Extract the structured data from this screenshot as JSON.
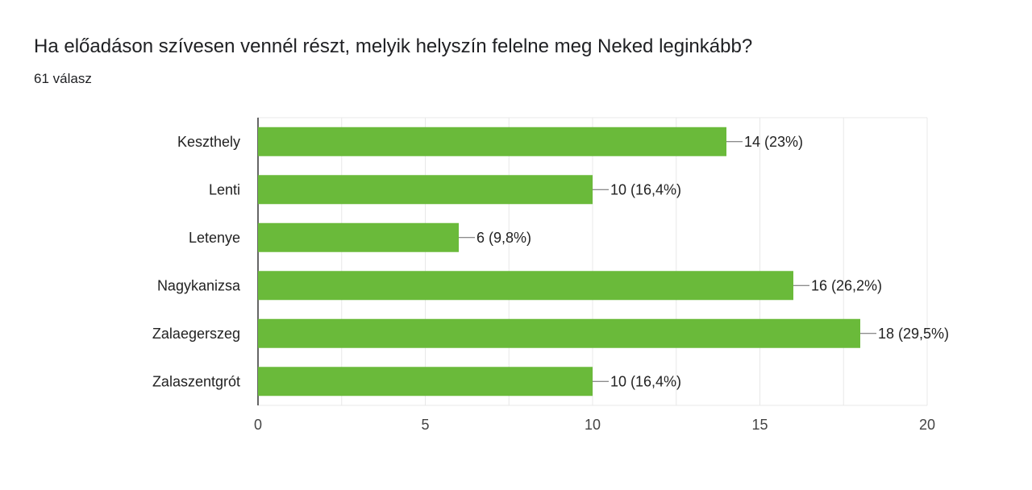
{
  "header": {
    "question": "Ha előadáson szívesen vennél részt, melyik helyszín felelne meg Neked leginkább?",
    "responses": "61 válasz"
  },
  "chart_data": {
    "type": "bar",
    "orientation": "horizontal",
    "categories": [
      "Keszthely",
      "Lenti",
      "Letenye",
      "Nagykanizsa",
      "Zalaegerszeg",
      "Zalaszentgrót"
    ],
    "values": [
      14,
      10,
      6,
      16,
      18,
      10
    ],
    "data_labels": [
      "14 (23%)",
      "10 (16,4%)",
      "6 (9,8%)",
      "16 (26,2%)",
      "18 (29,5%)",
      "10 (16,4%)"
    ],
    "xlim": [
      0,
      20
    ],
    "xticks": [
      "0",
      "5",
      "10",
      "15",
      "20"
    ],
    "grid": true,
    "bar_color": "#6aba3a"
  }
}
